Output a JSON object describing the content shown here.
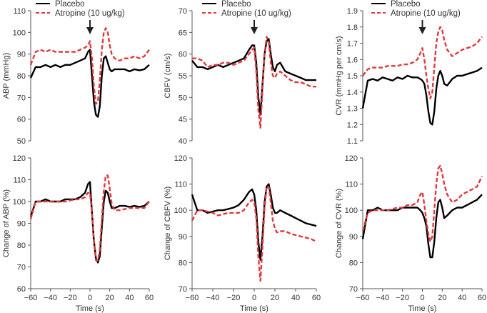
{
  "legend": {
    "placebo": "Placebo",
    "atropine": "Atropine (10 ug/kg)"
  },
  "colors": {
    "placebo": "#000000",
    "atropine": "#e03a3e",
    "axis": "#555555"
  },
  "chart_data": [
    {
      "type": "line",
      "id": "abp",
      "ylabel": "ABP (mmHg)",
      "xlabel": "",
      "ylim": [
        50,
        110
      ],
      "yticks": [
        50,
        60,
        70,
        80,
        90,
        100,
        110
      ],
      "xlim": [
        -60,
        60
      ],
      "arrow_at": 0,
      "x": [
        -60,
        -55,
        -50,
        -45,
        -40,
        -35,
        -30,
        -25,
        -20,
        -15,
        -10,
        -5,
        -2,
        0,
        2,
        4,
        6,
        8,
        10,
        12,
        14,
        16,
        18,
        20,
        22,
        25,
        30,
        35,
        40,
        45,
        50,
        55,
        60
      ],
      "series": [
        {
          "name": "Placebo",
          "values": [
            79,
            84,
            84,
            85,
            84,
            85,
            84,
            85,
            85,
            86,
            87,
            88,
            91,
            92,
            80,
            68,
            62,
            61,
            66,
            80,
            88,
            89,
            86,
            83,
            82,
            83,
            83,
            83,
            82,
            83,
            82.5,
            83,
            85
          ]
        },
        {
          "name": "Atropine (10 ug/kg)",
          "values": [
            85,
            91,
            92,
            91,
            92,
            91,
            91,
            91,
            91,
            91,
            92,
            93,
            94,
            96,
            88,
            75,
            67,
            68,
            78,
            92,
            100,
            102,
            100,
            94,
            90,
            88,
            87,
            88,
            88,
            89,
            88,
            89,
            92
          ]
        }
      ]
    },
    {
      "type": "line",
      "id": "cbfv",
      "ylabel": "CBFV (cm/s)",
      "xlabel": "",
      "ylim": [
        40,
        70
      ],
      "yticks": [
        40,
        45,
        50,
        55,
        60,
        65,
        70
      ],
      "xlim": [
        -60,
        60
      ],
      "arrow_at": 0,
      "x": [
        -60,
        -55,
        -50,
        -45,
        -40,
        -35,
        -30,
        -25,
        -20,
        -15,
        -10,
        -5,
        -2,
        0,
        2,
        4,
        6,
        8,
        10,
        12,
        14,
        16,
        18,
        20,
        22,
        25,
        30,
        35,
        40,
        45,
        50,
        55,
        60
      ],
      "series": [
        {
          "name": "Placebo",
          "values": [
            58.5,
            57,
            57,
            56.5,
            57,
            57.5,
            57,
            57.5,
            58,
            58.5,
            59,
            61,
            62,
            62,
            58,
            50,
            46,
            53,
            60,
            63,
            63.5,
            60,
            57,
            56,
            57.5,
            58,
            56,
            55.5,
            55,
            54.5,
            54,
            54,
            54
          ]
        },
        {
          "name": "Atropine (10 ug/kg)",
          "values": [
            59,
            59,
            58.5,
            57,
            57.5,
            57.5,
            58,
            58,
            57.5,
            58,
            58.5,
            60,
            61,
            61.5,
            56,
            47,
            43,
            52,
            60,
            64,
            63,
            58,
            55,
            54.5,
            55.5,
            56,
            55,
            54,
            53.5,
            53.5,
            53,
            52.5,
            52.5
          ]
        }
      ]
    },
    {
      "type": "line",
      "id": "cvr",
      "ylabel": "CVR (mmHg per cm/s)",
      "xlabel": "",
      "ylim": [
        1.1,
        1.9
      ],
      "yticks": [
        1.1,
        1.2,
        1.3,
        1.4,
        1.5,
        1.6,
        1.7,
        1.8,
        1.9
      ],
      "xlim": [
        -60,
        60
      ],
      "arrow_at": 0,
      "x": [
        -60,
        -55,
        -50,
        -45,
        -40,
        -35,
        -30,
        -25,
        -20,
        -15,
        -10,
        -5,
        -2,
        0,
        2,
        4,
        6,
        8,
        10,
        12,
        14,
        16,
        18,
        20,
        22,
        25,
        30,
        35,
        40,
        45,
        50,
        55,
        60
      ],
      "series": [
        {
          "name": "Placebo",
          "values": [
            1.3,
            1.47,
            1.48,
            1.47,
            1.49,
            1.48,
            1.47,
            1.49,
            1.48,
            1.5,
            1.49,
            1.49,
            1.48,
            1.47,
            1.45,
            1.38,
            1.28,
            1.21,
            1.2,
            1.28,
            1.42,
            1.5,
            1.53,
            1.5,
            1.45,
            1.44,
            1.48,
            1.5,
            1.5,
            1.51,
            1.52,
            1.53,
            1.55
          ]
        },
        {
          "name": "Atropine (10 ug/kg)",
          "values": [
            1.5,
            1.54,
            1.55,
            1.55,
            1.55,
            1.56,
            1.56,
            1.56,
            1.57,
            1.57,
            1.58,
            1.6,
            1.64,
            1.67,
            1.6,
            1.5,
            1.42,
            1.36,
            1.4,
            1.55,
            1.7,
            1.77,
            1.8,
            1.78,
            1.72,
            1.66,
            1.62,
            1.64,
            1.66,
            1.67,
            1.68,
            1.7,
            1.74
          ]
        }
      ]
    },
    {
      "type": "line",
      "id": "abp-pct",
      "ylabel": "Change of ABP (%)",
      "xlabel": "Time (s)",
      "ylim": [
        60,
        120
      ],
      "yticks": [
        60,
        70,
        80,
        90,
        100,
        110,
        120
      ],
      "xlim": [
        -60,
        60
      ],
      "xticks": [
        -60,
        -40,
        -20,
        0,
        20,
        40,
        60
      ],
      "x": [
        -60,
        -55,
        -50,
        -45,
        -40,
        -35,
        -30,
        -25,
        -20,
        -15,
        -10,
        -5,
        -2,
        0,
        2,
        4,
        6,
        8,
        10,
        12,
        14,
        16,
        18,
        20,
        22,
        25,
        30,
        35,
        40,
        45,
        50,
        55,
        60
      ],
      "series": [
        {
          "name": "Placebo",
          "values": [
            93,
            100,
            100,
            101,
            100,
            100,
            100,
            101,
            101,
            101,
            102,
            104,
            108,
            109,
            95,
            82,
            74,
            72,
            75,
            88,
            100,
            105,
            104,
            100,
            97,
            97,
            98,
            98,
            97.5,
            98,
            97.5,
            98,
            100
          ]
        },
        {
          "name": "Atropine (10 ug/kg)",
          "values": [
            92,
            100,
            100,
            100,
            100,
            100,
            100,
            100,
            100.5,
            101,
            101,
            102,
            104,
            104,
            95,
            82,
            73,
            73,
            78,
            92,
            105,
            112,
            112,
            106,
            99,
            96,
            96,
            96.5,
            97,
            97,
            97,
            97,
            100
          ]
        }
      ]
    },
    {
      "type": "line",
      "id": "cbfv-pct",
      "ylabel": "Change of CBFV (%)",
      "xlabel": "Time (s)",
      "ylim": [
        70,
        120
      ],
      "yticks": [
        70,
        80,
        90,
        100,
        110,
        120
      ],
      "xlim": [
        -60,
        60
      ],
      "xticks": [
        -60,
        -40,
        -20,
        0,
        20,
        40,
        60
      ],
      "x": [
        -60,
        -55,
        -50,
        -45,
        -40,
        -35,
        -30,
        -25,
        -20,
        -15,
        -10,
        -5,
        -2,
        0,
        2,
        4,
        6,
        8,
        10,
        12,
        14,
        16,
        18,
        20,
        22,
        25,
        30,
        35,
        40,
        45,
        50,
        55,
        60
      ],
      "series": [
        {
          "name": "Placebo",
          "values": [
            106,
            100,
            100,
            99,
            99.5,
            100,
            100,
            100.5,
            101,
            102,
            104,
            107,
            108,
            106,
            100,
            88,
            81,
            90,
            103,
            109,
            110,
            106,
            101,
            99,
            99,
            100,
            99,
            98,
            97,
            96,
            95,
            94.5,
            94
          ]
        },
        {
          "name": "Atropine (10 ug/kg)",
          "values": [
            96,
            100,
            100,
            99.5,
            99,
            98,
            98.5,
            99,
            99,
            99,
            100,
            103,
            104,
            103,
            97,
            82,
            73,
            86,
            101,
            109,
            109,
            103,
            96,
            93,
            91.5,
            92,
            92,
            91,
            90.5,
            90,
            89.5,
            89,
            88
          ]
        }
      ]
    },
    {
      "type": "line",
      "id": "cvr-pct",
      "ylabel": "Change of CVR (%)",
      "xlabel": "Time (s)",
      "ylim": [
        70,
        120
      ],
      "yticks": [
        70,
        80,
        90,
        100,
        110,
        120
      ],
      "xlim": [
        -60,
        60
      ],
      "xticks": [
        -60,
        -40,
        -20,
        0,
        20,
        40,
        60
      ],
      "x": [
        -60,
        -55,
        -50,
        -45,
        -40,
        -35,
        -30,
        -25,
        -20,
        -15,
        -10,
        -5,
        -2,
        0,
        2,
        4,
        6,
        8,
        10,
        12,
        14,
        16,
        18,
        20,
        22,
        25,
        30,
        35,
        40,
        45,
        50,
        55,
        60
      ],
      "series": [
        {
          "name": "Placebo",
          "values": [
            89,
            100,
            100,
            101,
            100,
            100,
            100,
            100,
            101,
            101,
            101,
            101,
            100,
            99,
            97,
            94,
            87,
            82,
            82,
            88,
            97,
            103,
            104,
            101,
            97,
            98,
            100,
            101,
            101,
            102,
            103,
            104,
            106
          ]
        },
        {
          "name": "Atropine (10 ug/kg)",
          "values": [
            92,
            99,
            100,
            100,
            100,
            100,
            100.5,
            101,
            101,
            102,
            102,
            103,
            106,
            107,
            102,
            96,
            91,
            88,
            90,
            100,
            110,
            116,
            117,
            114,
            110,
            106,
            103,
            104,
            106,
            107,
            108,
            109,
            113
          ]
        }
      ]
    }
  ]
}
